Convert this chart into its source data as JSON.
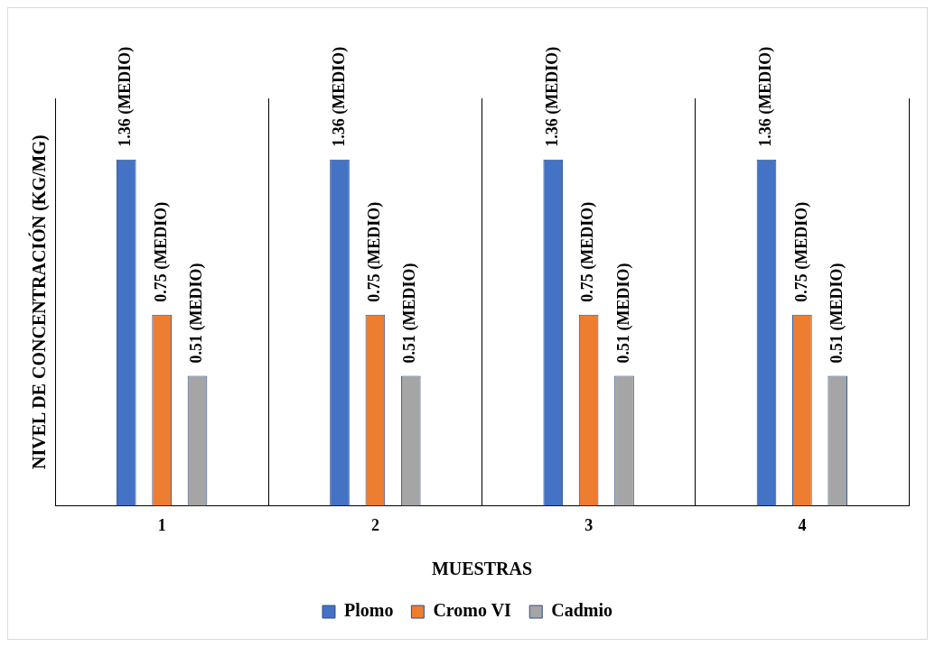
{
  "chart_data": {
    "type": "bar",
    "xlabel": "MUESTRAS",
    "ylabel": "NIVEL DE CONCENTRACIÓN (KG/MG)",
    "categories": [
      "1",
      "2",
      "3",
      "4"
    ],
    "series": [
      {
        "name": "Plomo",
        "color": "#4472c4",
        "values": [
          1.36,
          1.36,
          1.36,
          1.36
        ],
        "value_labels": [
          "1.36 (MEDIO)",
          "1.36 (MEDIO)",
          "1.36 (MEDIO)",
          "1.36 (MEDIO)"
        ]
      },
      {
        "name": "Cromo VI",
        "color": "#ed7d31",
        "values": [
          0.75,
          0.75,
          0.75,
          0.75
        ],
        "value_labels": [
          "0.75 (MEDIO)",
          "0.75 (MEDIO)",
          "0.75 (MEDIO)",
          "0.75 (MEDIO)"
        ]
      },
      {
        "name": "Cadmio",
        "color": "#a5a5a5",
        "values": [
          0.51,
          0.51,
          0.51,
          0.51
        ],
        "value_labels": [
          "0.51 (MEDIO)",
          "0.51 (MEDIO)",
          "0.51 (MEDIO)",
          "0.51 (MEDIO)"
        ]
      }
    ],
    "grid": "x",
    "legend": "bottom",
    "tick_labels": "x"
  }
}
